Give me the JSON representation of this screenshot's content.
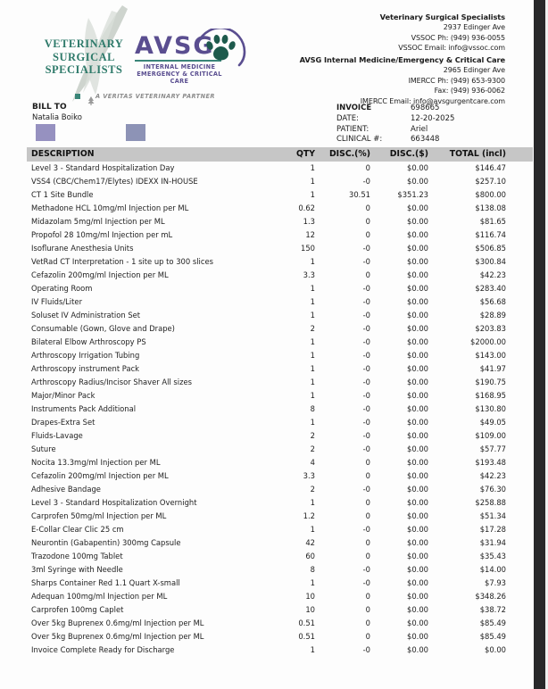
{
  "logos": {
    "vss": {
      "line1": "VETERINARY",
      "line2": "SURGICAL",
      "line3": "SPECIALISTS"
    },
    "avsg": {
      "acronym": "AVSG",
      "caption1": "INTERNAL MEDICINE",
      "caption2": "EMERGENCY & CRITICAL CARE"
    },
    "partner_tagline": "A VERITAS VETERINARY PARTNER"
  },
  "colors": {
    "teal": "#2e7a6a",
    "teal_dark": "#1d5a4c",
    "purple": "#5a4e90",
    "header_bar": "#c6c6c6",
    "redact_1": "#9691c0",
    "redact_2": "#8d93b6",
    "edge_strip": "#28282a"
  },
  "contact_vss": {
    "name": "Veterinary Surgical Specialists",
    "lines": [
      "2937 Edinger Ave",
      "VSSOC Ph: (949) 936-0055",
      "VSSOC Email: info@vssoc.com"
    ]
  },
  "contact_avsg": {
    "name": "AVSG Internal Medicine/Emergency & Critical Care",
    "lines": [
      "2965 Edinger Ave",
      "IMERCC Ph: (949) 653-9300",
      "Fax: (949) 936-0062",
      "IMERCC Email: info@avsgurgentcare.com"
    ]
  },
  "bill_to": {
    "label": "BILL TO",
    "name": "Natalia Boiko"
  },
  "invoice_info": {
    "rows": [
      {
        "label": "INVOICE",
        "value": "698665"
      },
      {
        "label": "DATE:",
        "value": "12-20-2025"
      },
      {
        "label": "PATIENT:",
        "value": "Ariel"
      },
      {
        "label": "CLINICAL #:",
        "value": "663448"
      }
    ]
  },
  "table": {
    "headers": [
      "DESCRIPTION",
      "QTY",
      "DISC.(%)",
      "DISC.($)",
      "TOTAL (incl)"
    ],
    "rows": [
      [
        "Level 3 - Standard Hospitalization Day",
        "1",
        "0",
        "$0.00",
        "$146.47"
      ],
      [
        "VSS4 (CBC/Chem17/Elytes) IDEXX IN-HOUSE",
        "1",
        "-0",
        "$0.00",
        "$257.10"
      ],
      [
        "CT 1 Site Bundle",
        "1",
        "30.51",
        "$351.23",
        "$800.00"
      ],
      [
        "Methadone HCL 10mg/ml Injection per ML",
        "0.62",
        "0",
        "$0.00",
        "$138.08"
      ],
      [
        "Midazolam 5mg/ml Injection per ML",
        "1.3",
        "0",
        "$0.00",
        "$81.65"
      ],
      [
        "Propofol 28 10mg/ml Injection per mL",
        "12",
        "0",
        "$0.00",
        "$116.74"
      ],
      [
        "Isoflurane Anesthesia Units",
        "150",
        "-0",
        "$0.00",
        "$506.85"
      ],
      [
        "VetRad CT Interpretation - 1 site up to 300 slices",
        "1",
        "-0",
        "$0.00",
        "$300.84"
      ],
      [
        "Cefazolin 200mg/ml Injection per ML",
        "3.3",
        "0",
        "$0.00",
        "$42.23"
      ],
      [
        "Operating Room",
        "1",
        "-0",
        "$0.00",
        "$283.40"
      ],
      [
        "IV Fluids/Liter",
        "1",
        "-0",
        "$0.00",
        "$56.68"
      ],
      [
        "Soluset IV Administration Set",
        "1",
        "-0",
        "$0.00",
        "$28.89"
      ],
      [
        "Consumable (Gown, Glove and Drape)",
        "2",
        "-0",
        "$0.00",
        "$203.83"
      ],
      [
        "Bilateral Elbow Arthroscopy PS",
        "1",
        "-0",
        "$0.00",
        "$2000.00"
      ],
      [
        "Arthroscopy Irrigation Tubing",
        "1",
        "-0",
        "$0.00",
        "$143.00"
      ],
      [
        "Arthroscopy instrument Pack",
        "1",
        "-0",
        "$0.00",
        "$41.97"
      ],
      [
        "Arthroscopy Radius/Incisor Shaver All sizes",
        "1",
        "-0",
        "$0.00",
        "$190.75"
      ],
      [
        "Major/Minor Pack",
        "1",
        "-0",
        "$0.00",
        "$168.95"
      ],
      [
        "Instruments Pack Additional",
        "8",
        "-0",
        "$0.00",
        "$130.80"
      ],
      [
        "Drapes-Extra Set",
        "1",
        "-0",
        "$0.00",
        "$49.05"
      ],
      [
        "Fluids-Lavage",
        "2",
        "-0",
        "$0.00",
        "$109.00"
      ],
      [
        "Suture",
        "2",
        "-0",
        "$0.00",
        "$57.77"
      ],
      [
        "Nocita 13.3mg/ml Injection per ML",
        "4",
        "0",
        "$0.00",
        "$193.48"
      ],
      [
        "Cefazolin 200mg/ml Injection per ML",
        "3.3",
        "0",
        "$0.00",
        "$42.23"
      ],
      [
        "Adhesive Bandage",
        "2",
        "-0",
        "$0.00",
        "$76.30"
      ],
      [
        "Level 3 - Standard Hospitalization Overnight",
        "1",
        "0",
        "$0.00",
        "$258.88"
      ],
      [
        "Carprofen 50mg/ml Injection per ML",
        "1.2",
        "0",
        "$0.00",
        "$51.34"
      ],
      [
        "E-Collar Clear Clic 25 cm",
        "1",
        "-0",
        "$0.00",
        "$17.28"
      ],
      [
        "Neurontin (Gabapentin) 300mg Capsule",
        "42",
        "0",
        "$0.00",
        "$31.94"
      ],
      [
        "Trazodone 100mg Tablet",
        "60",
        "0",
        "$0.00",
        "$35.43"
      ],
      [
        "3ml Syringe with Needle",
        "8",
        "-0",
        "$0.00",
        "$14.00"
      ],
      [
        "Sharps Container Red 1.1 Quart X-small",
        "1",
        "-0",
        "$0.00",
        "$7.93"
      ],
      [
        "Adequan 100mg/ml Injection per ML",
        "10",
        "0",
        "$0.00",
        "$348.26"
      ],
      [
        "Carprofen 100mg Caplet",
        "10",
        "0",
        "$0.00",
        "$38.72"
      ],
      [
        "Over 5kg Buprenex 0.6mg/ml Injection per ML",
        "0.51",
        "0",
        "$0.00",
        "$85.49"
      ],
      [
        "Over 5kg Buprenex 0.6mg/ml Injection per ML",
        "0.51",
        "0",
        "$0.00",
        "$85.49"
      ],
      [
        "Invoice Complete Ready for Discharge",
        "1",
        "-0",
        "$0.00",
        "$0.00"
      ]
    ]
  }
}
